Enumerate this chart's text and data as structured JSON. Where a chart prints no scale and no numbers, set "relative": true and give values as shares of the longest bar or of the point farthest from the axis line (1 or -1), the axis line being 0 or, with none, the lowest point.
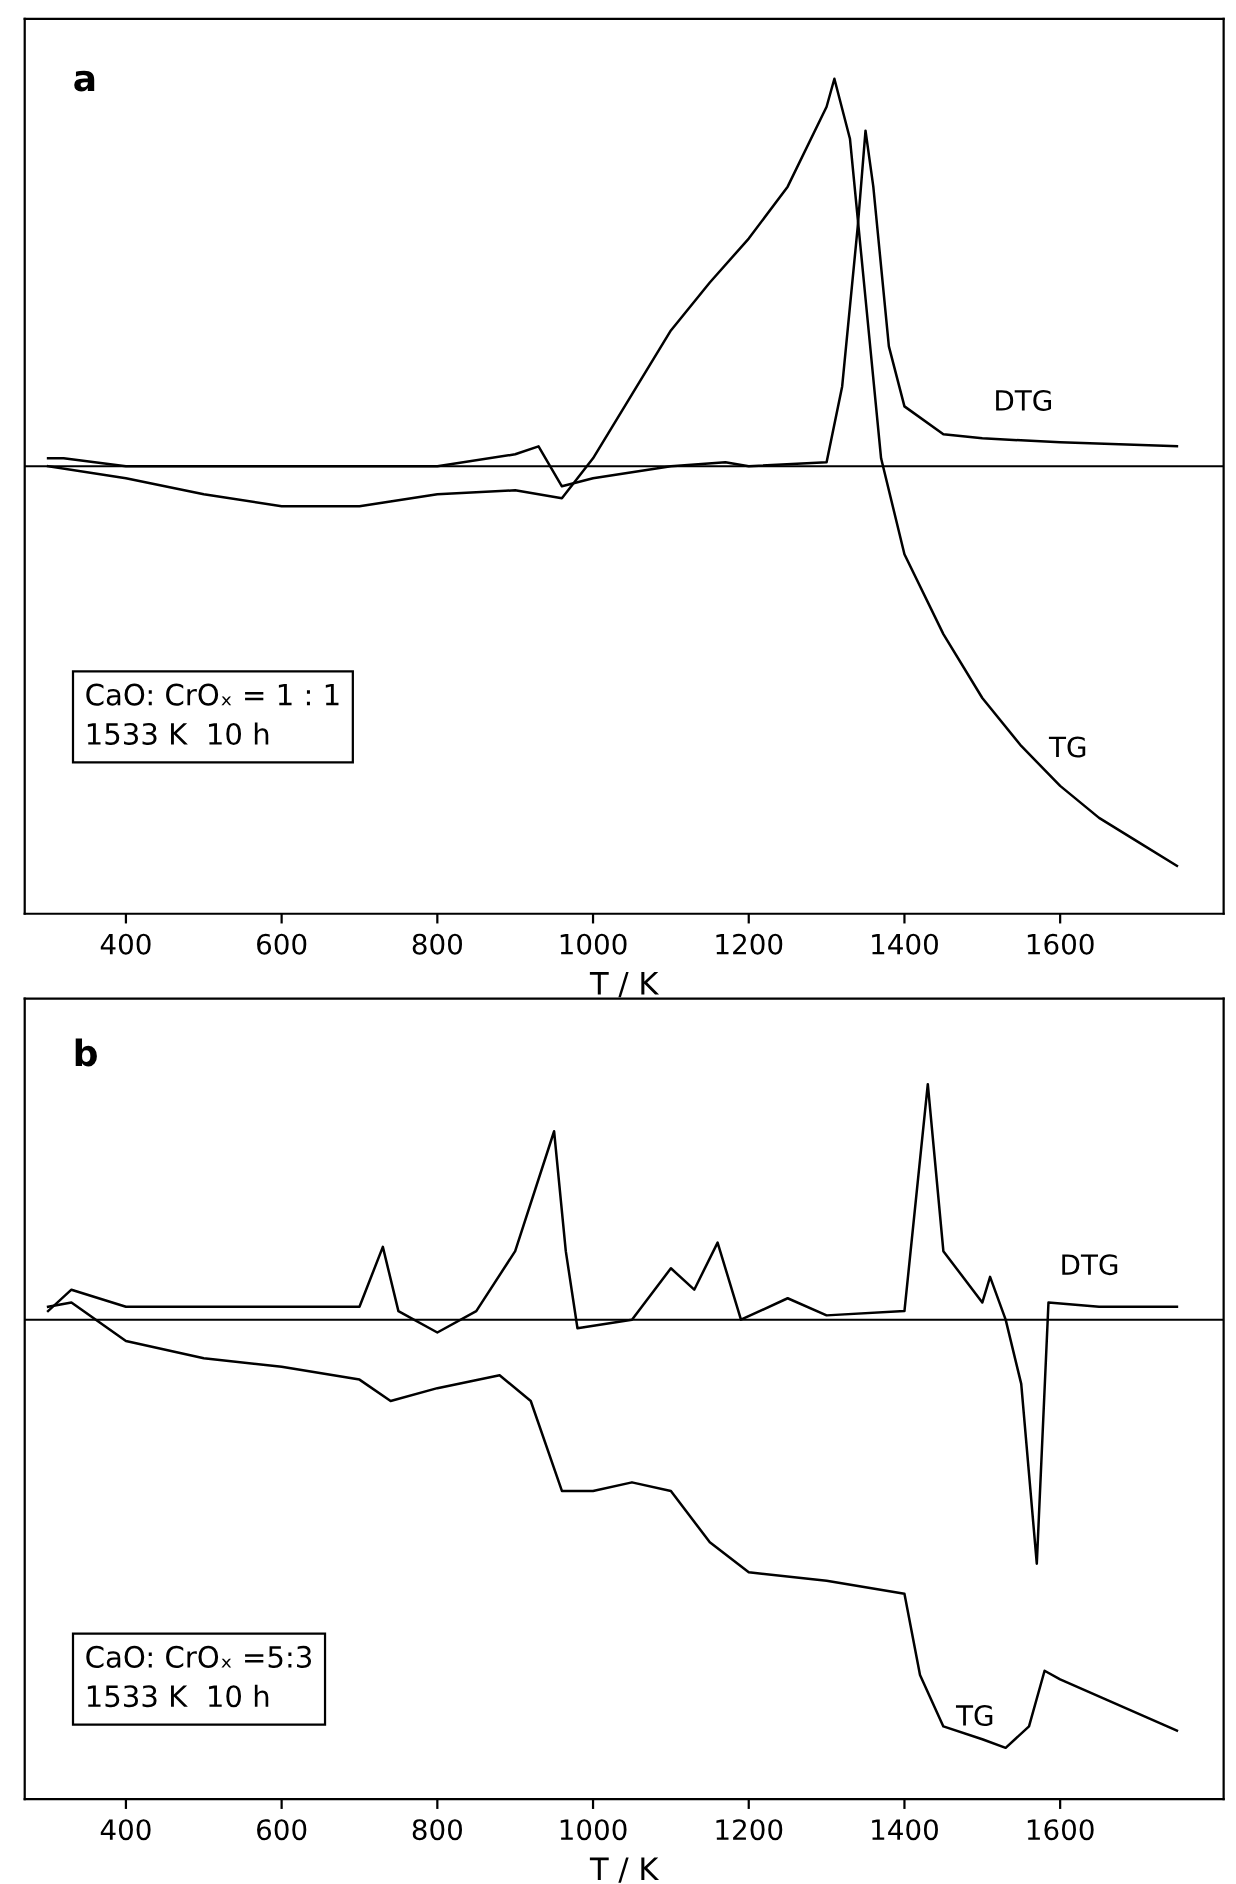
{
  "chart_data": [
    {
      "type": "line",
      "relative": true,
      "xlabel": "T / K",
      "xlim": [
        270,
        1810
      ],
      "xticks": [
        400,
        600,
        800,
        1000,
        1200,
        1400,
        1600
      ],
      "ref_lines": [
        {
          "axis": "y",
          "value": 0,
          "color": "#000000"
        }
      ],
      "annotations": [
        "a",
        "CaO: CrOₓ = 1 : 1\n1533 K  10 h"
      ],
      "series": [
        {
          "name": "TG",
          "color": "#000000",
          "x": [
            300,
            400,
            500,
            600,
            700,
            800,
            900,
            960,
            1000,
            1050,
            1100,
            1150,
            1200,
            1250,
            1300,
            1310,
            1330,
            1350,
            1370,
            1400,
            1450,
            1500,
            1550,
            1600,
            1650,
            1700,
            1750
          ],
          "values": [
            0,
            -0.03,
            -0.07,
            -0.1,
            -0.1,
            -0.07,
            -0.06,
            -0.08,
            0.02,
            0.18,
            0.34,
            0.46,
            0.57,
            0.7,
            0.9,
            0.97,
            0.82,
            0.42,
            0.02,
            -0.22,
            -0.42,
            -0.58,
            -0.7,
            -0.8,
            -0.88,
            -0.94,
            -1.0
          ]
        },
        {
          "name": "DTG",
          "color": "#000000",
          "x": [
            300,
            320,
            400,
            800,
            900,
            930,
            960,
            1000,
            1100,
            1170,
            1200,
            1300,
            1320,
            1340,
            1350,
            1360,
            1380,
            1400,
            1450,
            1500,
            1600,
            1750
          ],
          "values": [
            0.02,
            0.02,
            0,
            0,
            0.03,
            0.05,
            -0.05,
            -0.03,
            0,
            0.01,
            0,
            0.01,
            0.2,
            0.6,
            0.84,
            0.7,
            0.3,
            0.15,
            0.08,
            0.07,
            0.06,
            0.05
          ]
        }
      ]
    },
    {
      "type": "line",
      "relative": true,
      "xlabel": "T / K",
      "xlim": [
        270,
        1810
      ],
      "xticks": [
        400,
        600,
        800,
        1000,
        1200,
        1400,
        1600
      ],
      "ref_lines": [
        {
          "axis": "y",
          "value": 0,
          "color": "#000000"
        }
      ],
      "annotations": [
        "b",
        "CaO: CrOₓ =5:3\n1533 K  10 h"
      ],
      "series": [
        {
          "name": "TG",
          "color": "#000000",
          "x": [
            300,
            330,
            400,
            500,
            600,
            700,
            740,
            800,
            880,
            920,
            960,
            1000,
            1050,
            1100,
            1150,
            1200,
            1300,
            1400,
            1420,
            1450,
            1500,
            1530,
            1560,
            1580,
            1600,
            1750
          ],
          "values": [
            0.03,
            0.04,
            -0.05,
            -0.09,
            -0.11,
            -0.14,
            -0.19,
            -0.16,
            -0.13,
            -0.19,
            -0.4,
            -0.4,
            -0.38,
            -0.4,
            -0.52,
            -0.59,
            -0.61,
            -0.64,
            -0.83,
            -0.95,
            -0.98,
            -1.0,
            -0.95,
            -0.82,
            -0.84,
            -0.96
          ]
        },
        {
          "name": "DTG",
          "color": "#000000",
          "x": [
            300,
            330,
            400,
            500,
            700,
            730,
            750,
            800,
            850,
            900,
            950,
            965,
            980,
            1050,
            1100,
            1130,
            1160,
            1190,
            1250,
            1300,
            1400,
            1430,
            1450,
            1500,
            1510,
            1530,
            1550,
            1570,
            1585,
            1650,
            1750
          ],
          "values": [
            0.02,
            0.07,
            0.03,
            0.03,
            0.03,
            0.17,
            0.02,
            -0.03,
            0.02,
            0.16,
            0.44,
            0.16,
            -0.02,
            0,
            0.12,
            0.07,
            0.18,
            0,
            0.05,
            0.01,
            0.02,
            0.55,
            0.16,
            0.04,
            0.1,
            0,
            -0.15,
            -0.57,
            0.04,
            0.03,
            0.03
          ]
        }
      ]
    }
  ]
}
